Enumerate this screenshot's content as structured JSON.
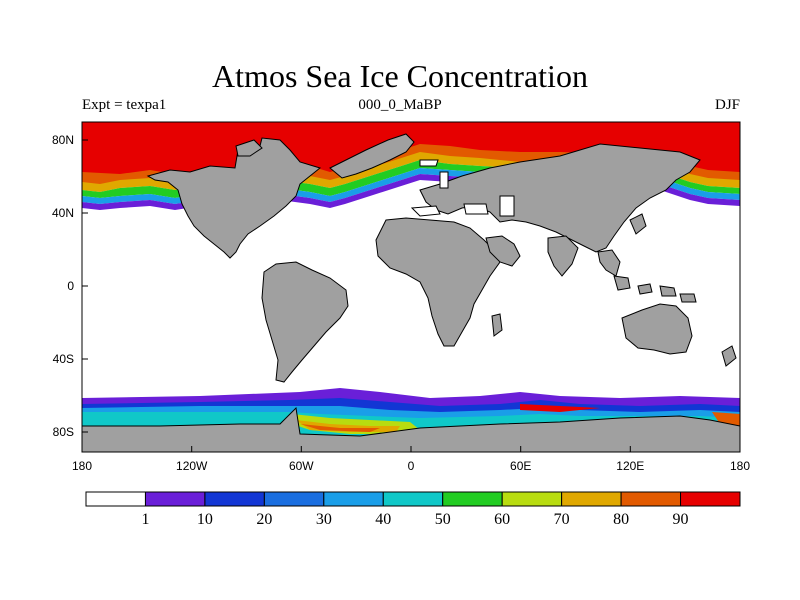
{
  "title": "Atmos Sea Ice Concentration",
  "subtitle_left": "Expt = texpa1",
  "subtitle_center": "000_0_MaBP",
  "subtitle_right": "DJF",
  "axes": {
    "x_ticks": [
      "180",
      "120W",
      "60W",
      "0",
      "60E",
      "120E",
      "180"
    ],
    "y_ticks": [
      "80N",
      "40N",
      "0",
      "40S",
      "80S"
    ]
  },
  "colorbar": {
    "labels": [
      "1",
      "10",
      "20",
      "30",
      "40",
      "50",
      "60",
      "70",
      "80",
      "90"
    ],
    "colors": [
      "#ffffff",
      "#6a1fd8",
      "#1236d4",
      "#1a6ee0",
      "#1a9ee8",
      "#10c8c8",
      "#22cc22",
      "#b8dc10",
      "#e0a800",
      "#e25a00",
      "#e60000"
    ]
  },
  "colors": {
    "land": "#a0a0a0",
    "ocean": "#ffffff",
    "ice_full": "#e60000"
  }
}
